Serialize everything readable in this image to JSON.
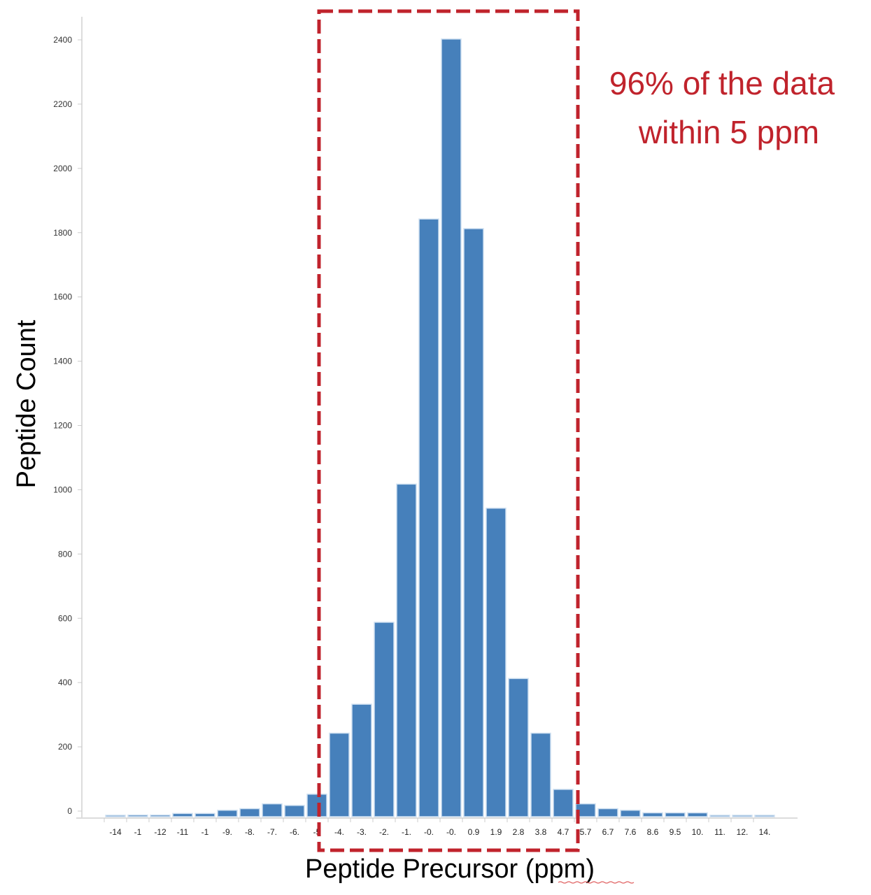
{
  "chart_data": {
    "type": "bar",
    "title": "",
    "xlabel": "Peptide Precursor (ppm)",
    "ylabel": "Peptide Count",
    "ylim": [
      0,
      2500
    ],
    "yticks": [
      0,
      200,
      400,
      600,
      800,
      1000,
      1200,
      1400,
      1600,
      1800,
      2000,
      2200,
      2400
    ],
    "grid": false,
    "legend": null,
    "categories": [
      "-14",
      "-1",
      "-12",
      "-11",
      "-1",
      "-9.",
      "-8.",
      "-7.",
      "-6.",
      "-5",
      "-4.",
      "-3.",
      "-2.",
      "-1.",
      "-0.",
      "-0.",
      "0.9",
      "1.9",
      "2.8",
      "3.8",
      "4.7",
      "5.7",
      "6.7",
      "7.6",
      "8.6",
      "9.5",
      "10.",
      "11.",
      "12.",
      "14."
    ],
    "values": [
      4,
      5,
      5,
      10,
      10,
      20,
      25,
      40,
      35,
      70,
      260,
      350,
      605,
      1035,
      1860,
      2420,
      1830,
      960,
      430,
      260,
      85,
      40,
      25,
      20,
      12,
      12,
      12,
      4,
      4,
      4
    ],
    "annotations": [
      {
        "text_lines": [
          "96% of the data",
          "within 5 ppm"
        ],
        "color": "#c0232c",
        "box_range_categories": [
          "-5",
          "4.7"
        ],
        "box_style": "dashed"
      }
    ],
    "colors": {
      "bar": "#4680bb",
      "annotation": "#c0232c",
      "axis": "#dcdcdc"
    }
  },
  "labels": {
    "ylabel": "Peptide Count",
    "xlabel": "Peptide Precursor (ppm)",
    "annotation_line1": "96% of the data",
    "annotation_line2": "within 5 ppm"
  }
}
